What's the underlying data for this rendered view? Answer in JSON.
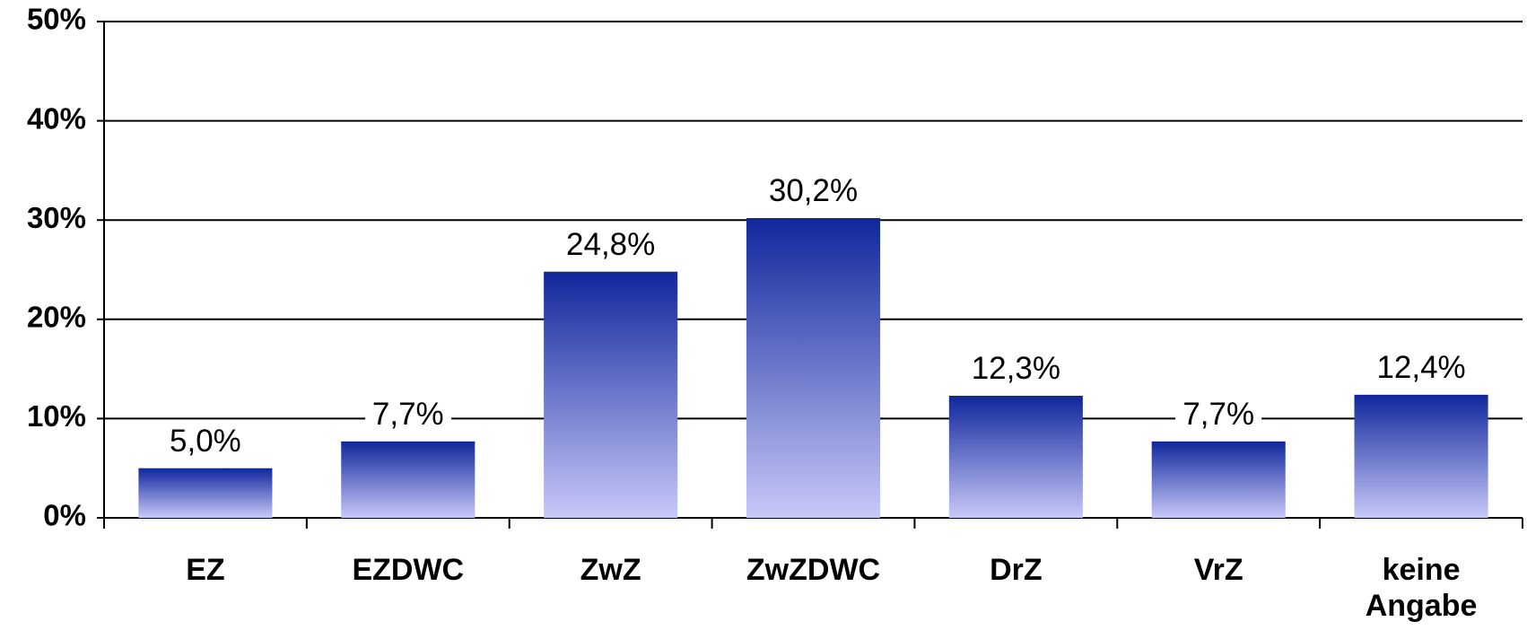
{
  "chart_data": {
    "type": "bar",
    "categories": [
      "EZ",
      "EZDWC",
      "ZwZ",
      "ZwZDWC",
      "DrZ",
      "VrZ",
      "keine Angabe"
    ],
    "values": [
      5.0,
      7.7,
      24.8,
      30.2,
      12.3,
      7.7,
      12.4
    ],
    "value_labels": [
      "5,0%",
      "7,7%",
      "24,8%",
      "30,2%",
      "12,3%",
      "7,7%",
      "12,4%"
    ],
    "color": [
      "#10279c",
      "#c8c8f8"
    ],
    "ylim": [
      0,
      50
    ],
    "yticks": [
      {
        "value": 0,
        "label": "0%"
      },
      {
        "value": 10,
        "label": "10%"
      },
      {
        "value": 20,
        "label": "20%"
      },
      {
        "value": 30,
        "label": "30%"
      },
      {
        "value": 40,
        "label": "40%"
      },
      {
        "value": 50,
        "label": "50%"
      }
    ],
    "grid": true
  }
}
